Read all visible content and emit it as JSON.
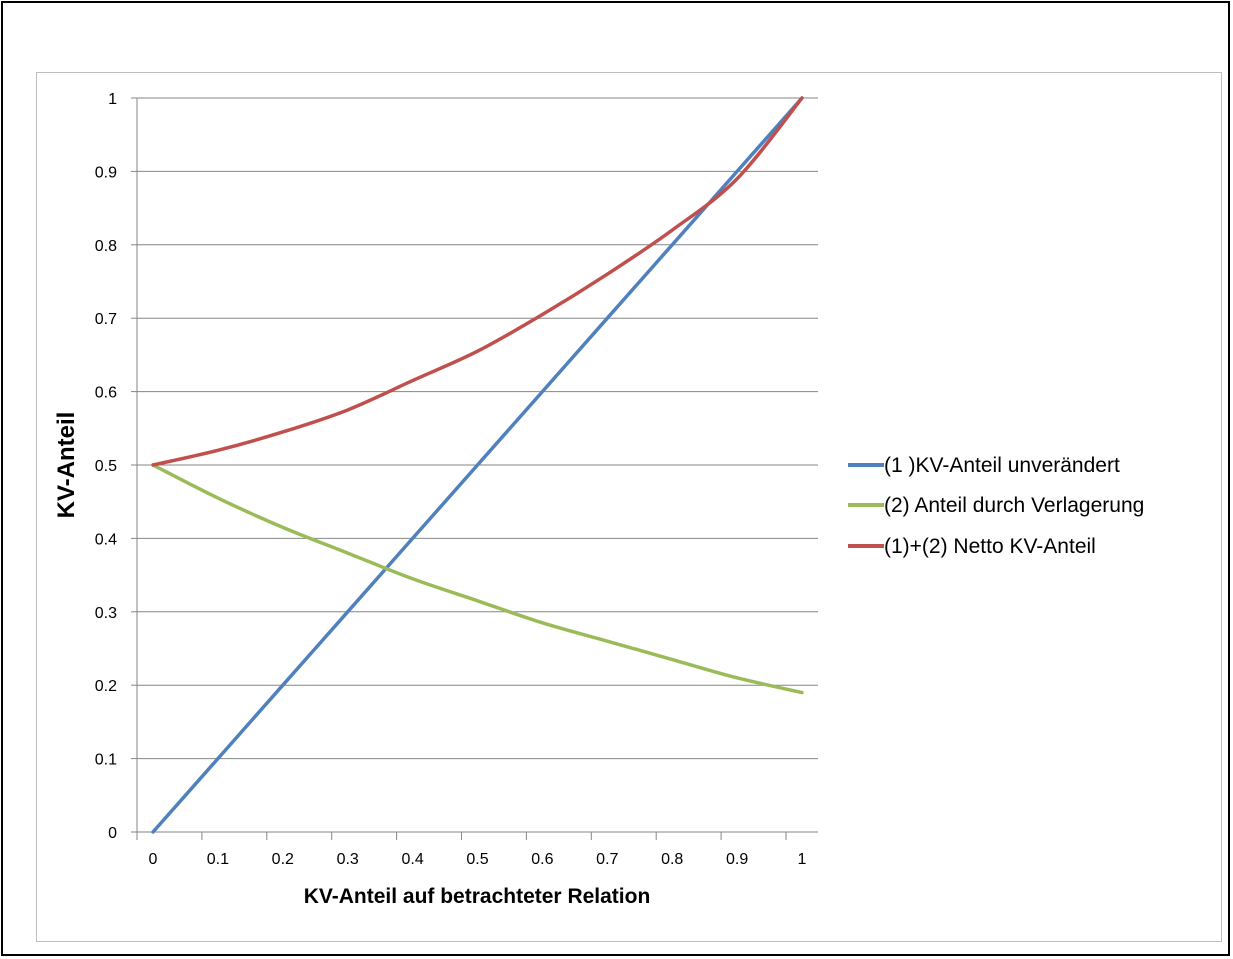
{
  "chart_data": {
    "type": "line",
    "title": "",
    "xlabel": "KV-Anteil auf betrachteter Relation",
    "ylabel": "KV-Anteil",
    "xlim": [
      0,
      1
    ],
    "ylim": [
      0,
      1
    ],
    "x_ticks": [
      "0",
      "0.1",
      "0.2",
      "0.3",
      "0.4",
      "0.5",
      "0.6",
      "0.7",
      "0.8",
      "0.9",
      "1"
    ],
    "y_ticks": [
      "0",
      "0.1",
      "0.2",
      "0.3",
      "0.4",
      "0.5",
      "0.6",
      "0.7",
      "0.8",
      "0.9",
      "1"
    ],
    "grid": "horizontal",
    "legend_position": "right",
    "x": [
      0,
      0.1,
      0.2,
      0.3,
      0.4,
      0.5,
      0.6,
      0.7,
      0.8,
      0.9,
      1
    ],
    "series": [
      {
        "name": "(1 )KV-Anteil unverändert",
        "color": "#4f81bd",
        "values": [
          0,
          0.1,
          0.2,
          0.3,
          0.4,
          0.5,
          0.6,
          0.7,
          0.8,
          0.9,
          1
        ]
      },
      {
        "name": "(2) Anteil durch Verlagerung",
        "color": "#9bbb59",
        "values": [
          0.5,
          0.455,
          0.415,
          0.38,
          0.345,
          0.315,
          0.285,
          0.26,
          0.235,
          0.21,
          0.19
        ]
      },
      {
        "name": "(1)+(2) Netto KV-Anteil",
        "color": "#c0504d",
        "values": [
          0.5,
          0.52,
          0.545,
          0.575,
          0.615,
          0.655,
          0.705,
          0.76,
          0.82,
          0.89,
          1
        ]
      }
    ]
  }
}
